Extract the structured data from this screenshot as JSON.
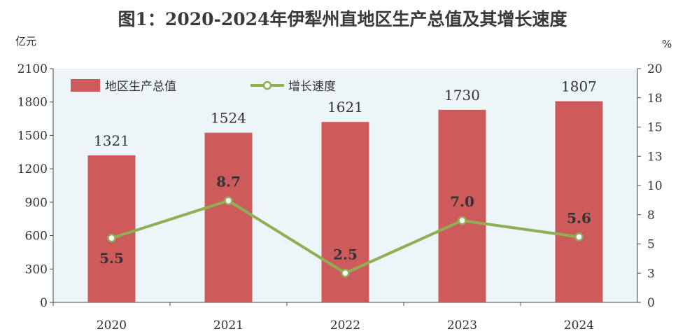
{
  "title": "图1：2020-2024年伊犁州直地区生产总值及其增长速度",
  "colors": {
    "bar": "#cd5b5b",
    "line": "#8faf55",
    "plot_bg": "#eef5f8",
    "marker_fill": "#ffffff"
  },
  "chart_data": {
    "type": "bar",
    "categories": [
      "2020",
      "2021",
      "2022",
      "2023",
      "2024"
    ],
    "series": [
      {
        "name": "地区生产总值",
        "type": "bar",
        "axis": "left",
        "values": [
          1321,
          1524,
          1621,
          1730,
          1807
        ],
        "labels": [
          "1321",
          "1524",
          "1621",
          "1730",
          "1807"
        ]
      },
      {
        "name": "增长速度",
        "type": "line",
        "axis": "right",
        "values": [
          5.5,
          8.7,
          2.5,
          7.0,
          5.6
        ],
        "labels": [
          "5.5",
          "8.7",
          "2.5",
          "7.0",
          "5.6"
        ]
      }
    ],
    "y_left": {
      "unit": "亿元",
      "ylim": [
        0,
        2100
      ],
      "ticks": [
        "0",
        "300",
        "600",
        "900",
        "1200",
        "1500",
        "1800",
        "2100"
      ]
    },
    "y_right": {
      "unit": "%",
      "ylim": [
        0,
        20
      ],
      "ticks": [
        "0",
        "3",
        "5",
        "8",
        "10",
        "13",
        "15",
        "18",
        "20"
      ]
    },
    "legend": {
      "placement": "top-left"
    },
    "grid": false
  }
}
